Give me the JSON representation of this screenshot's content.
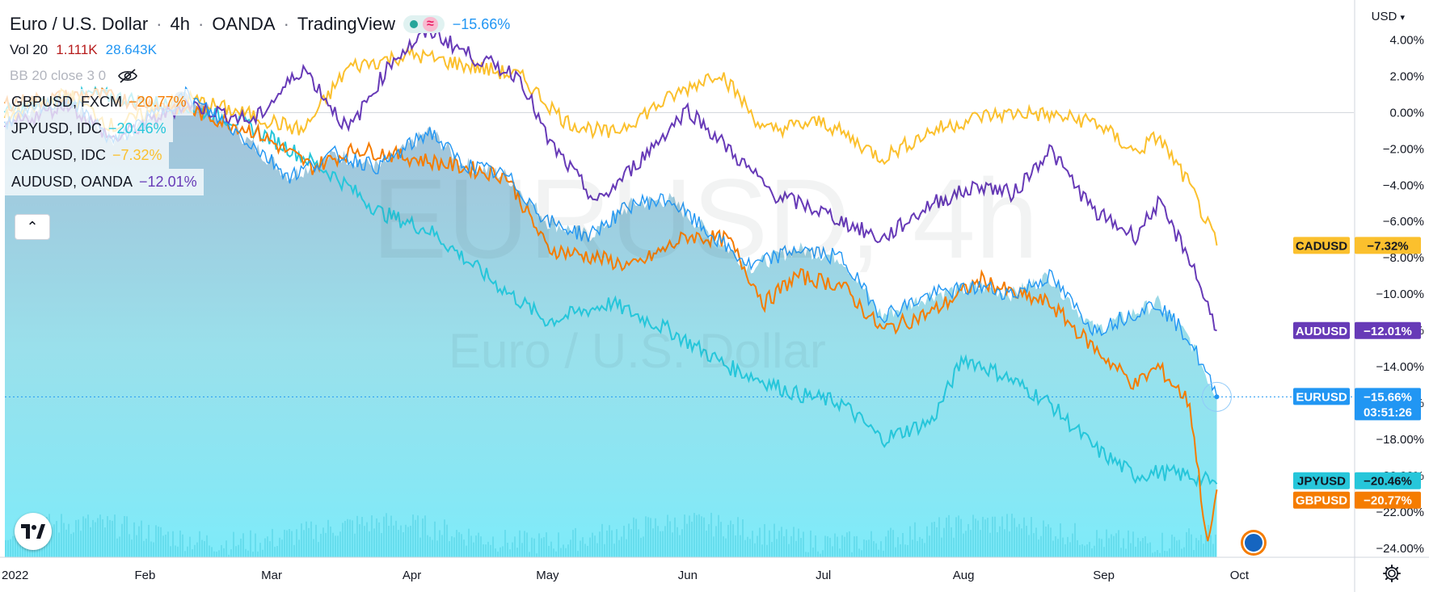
{
  "header": {
    "symbol": "Euro / U.S. Dollar",
    "interval": "4h",
    "exchange": "OANDA",
    "source": "TradingView",
    "change": "−15.66%",
    "sep": "·"
  },
  "indicators": {
    "vol_label": "Vol 20",
    "vol_val1": "1.111K",
    "vol_val2": "28.643K",
    "bb_label": "BB 20 close 3 0"
  },
  "compare": [
    {
      "name": "GBPUSD, FXCM",
      "value": "−20.77%",
      "color": "#f57c00"
    },
    {
      "name": "JPYUSD, IDC",
      "value": "−20.46%",
      "color": "#26c6da"
    },
    {
      "name": "CADUSD, IDC",
      "value": "−7.32%",
      "color": "#fbc02d"
    },
    {
      "name": "AUDUSD, OANDA",
      "value": "−12.01%",
      "color": "#673ab7"
    }
  ],
  "watermark": {
    "big": "EURUSD, 4h",
    "small": "Euro / U.S. Dollar"
  },
  "currency_button": "USD",
  "chart_data": {
    "type": "line",
    "x_ticks": [
      "2022",
      "Feb",
      "Mar",
      "Apr",
      "May",
      "Jun",
      "Jul",
      "Aug",
      "Sep",
      "Oct"
    ],
    "y_ticks": [
      "4.00%",
      "2.00%",
      "0.00%",
      "−2.00%",
      "−4.00%",
      "−6.00%",
      "−8.00%",
      "−10.00%",
      "−12.00%",
      "−14.00%",
      "−16.00%",
      "−18.00%",
      "−20.00%",
      "−22.00%",
      "−24.00%"
    ],
    "ylim": [
      -24.5,
      6.2
    ],
    "x_range": [
      "2022-01-01",
      "2022-10-07"
    ],
    "series": [
      {
        "name": "EURUSD",
        "label": "−15.66%",
        "sub": "03:51:26",
        "color": "#2196f3",
        "points": [
          [
            "2022-01-01",
            -0.5
          ],
          [
            "2022-01-15",
            0.8
          ],
          [
            "2022-01-25",
            -1.6
          ],
          [
            "2022-02-10",
            1.0
          ],
          [
            "2022-02-22",
            -1.2
          ],
          [
            "2022-03-05",
            -3.5
          ],
          [
            "2022-03-15",
            -2.3
          ],
          [
            "2022-03-25",
            -3.0
          ],
          [
            "2022-04-05",
            -1.0
          ],
          [
            "2022-04-12",
            -2.8
          ],
          [
            "2022-04-22",
            -3.5
          ],
          [
            "2022-05-01",
            -6.0
          ],
          [
            "2022-05-10",
            -6.8
          ],
          [
            "2022-05-20",
            -5.0
          ],
          [
            "2022-05-28",
            -4.8
          ],
          [
            "2022-06-05",
            -6.5
          ],
          [
            "2022-06-15",
            -8.5
          ],
          [
            "2022-06-25",
            -7.5
          ],
          [
            "2022-07-05",
            -8.0
          ],
          [
            "2022-07-14",
            -11.2
          ],
          [
            "2022-07-25",
            -10.0
          ],
          [
            "2022-08-05",
            -9.6
          ],
          [
            "2022-08-12",
            -10.0
          ],
          [
            "2022-08-20",
            -9.0
          ],
          [
            "2022-08-30",
            -12.0
          ],
          [
            "2022-09-08",
            -11.0
          ],
          [
            "2022-09-13",
            -10.5
          ],
          [
            "2022-09-20",
            -12.5
          ],
          [
            "2022-09-26",
            -15.66
          ]
        ]
      },
      {
        "name": "CADUSD",
        "label": "−7.32%",
        "color": "#fbc02d",
        "points": [
          [
            "2022-01-01",
            -0.3
          ],
          [
            "2022-01-15",
            1.0
          ],
          [
            "2022-01-25",
            -0.8
          ],
          [
            "2022-02-10",
            0.8
          ],
          [
            "2022-02-25",
            -0.2
          ],
          [
            "2022-03-08",
            -1.0
          ],
          [
            "2022-03-18",
            2.5
          ],
          [
            "2022-04-01",
            3.2
          ],
          [
            "2022-04-15",
            2.5
          ],
          [
            "2022-04-25",
            2.0
          ],
          [
            "2022-05-05",
            -0.5
          ],
          [
            "2022-05-15",
            -1.2
          ],
          [
            "2022-05-28",
            0.8
          ],
          [
            "2022-06-08",
            2.3
          ],
          [
            "2022-06-18",
            -1.0
          ],
          [
            "2022-07-01",
            -0.5
          ],
          [
            "2022-07-14",
            -2.5
          ],
          [
            "2022-07-25",
            -1.0
          ],
          [
            "2022-08-05",
            -0.2
          ],
          [
            "2022-08-15",
            0.0
          ],
          [
            "2022-08-30",
            -0.5
          ],
          [
            "2022-09-08",
            -2.2
          ],
          [
            "2022-09-13",
            -1.3
          ],
          [
            "2022-09-20",
            -4.0
          ],
          [
            "2022-09-26",
            -7.32
          ]
        ]
      },
      {
        "name": "AUDUSD",
        "label": "−12.01%",
        "color": "#673ab7",
        "points": [
          [
            "2022-01-01",
            -0.8
          ],
          [
            "2022-01-15",
            0.5
          ],
          [
            "2022-01-25",
            -1.5
          ],
          [
            "2022-02-10",
            0.5
          ],
          [
            "2022-02-25",
            -0.5
          ],
          [
            "2022-03-08",
            2.5
          ],
          [
            "2022-03-18",
            -1.0
          ],
          [
            "2022-03-28",
            3.0
          ],
          [
            "2022-04-05",
            4.5
          ],
          [
            "2022-04-15",
            3.0
          ],
          [
            "2022-04-25",
            2.0
          ],
          [
            "2022-05-01",
            -1.5
          ],
          [
            "2022-05-12",
            -5.0
          ],
          [
            "2022-05-20",
            -3.0
          ],
          [
            "2022-06-01",
            0.2
          ],
          [
            "2022-06-10",
            -2.0
          ],
          [
            "2022-06-20",
            -4.5
          ],
          [
            "2022-07-01",
            -5.5
          ],
          [
            "2022-07-14",
            -7.0
          ],
          [
            "2022-07-25",
            -5.0
          ],
          [
            "2022-08-05",
            -4.0
          ],
          [
            "2022-08-12",
            -4.5
          ],
          [
            "2022-08-20",
            -2.0
          ],
          [
            "2022-08-30",
            -5.5
          ],
          [
            "2022-09-08",
            -6.8
          ],
          [
            "2022-09-13",
            -5.0
          ],
          [
            "2022-09-20",
            -8.0
          ],
          [
            "2022-09-26",
            -12.01
          ]
        ]
      },
      {
        "name": "JPYUSD",
        "label": "−20.46%",
        "color": "#26c6da",
        "points": [
          [
            "2022-01-01",
            0.0
          ],
          [
            "2022-01-20",
            1.0
          ],
          [
            "2022-02-10",
            0.3
          ],
          [
            "2022-02-22",
            -0.5
          ],
          [
            "2022-03-05",
            -2.0
          ],
          [
            "2022-03-15",
            -3.5
          ],
          [
            "2022-03-25",
            -5.5
          ],
          [
            "2022-04-05",
            -6.5
          ],
          [
            "2022-04-20",
            -9.5
          ],
          [
            "2022-05-01",
            -11.5
          ],
          [
            "2022-05-15",
            -10.5
          ],
          [
            "2022-05-28",
            -12.0
          ],
          [
            "2022-06-10",
            -14.0
          ],
          [
            "2022-06-25",
            -15.5
          ],
          [
            "2022-07-05",
            -16.0
          ],
          [
            "2022-07-14",
            -18.0
          ],
          [
            "2022-07-25",
            -17.0
          ],
          [
            "2022-08-01",
            -13.5
          ],
          [
            "2022-08-10",
            -14.5
          ],
          [
            "2022-08-20",
            -16.0
          ],
          [
            "2022-08-30",
            -18.5
          ],
          [
            "2022-09-08",
            -20.0
          ],
          [
            "2022-09-13",
            -19.8
          ],
          [
            "2022-09-20",
            -20.0
          ],
          [
            "2022-09-26",
            -20.46
          ]
        ]
      },
      {
        "name": "GBPUSD",
        "label": "−20.77%",
        "color": "#f57c00",
        "points": [
          [
            "2022-01-01",
            0.5
          ],
          [
            "2022-01-20",
            1.0
          ],
          [
            "2022-02-10",
            0.2
          ],
          [
            "2022-02-25",
            -1.0
          ],
          [
            "2022-03-10",
            -3.0
          ],
          [
            "2022-03-20",
            -2.0
          ],
          [
            "2022-04-01",
            -2.5
          ],
          [
            "2022-04-12",
            -3.0
          ],
          [
            "2022-04-22",
            -3.5
          ],
          [
            "2022-05-01",
            -7.5
          ],
          [
            "2022-05-12",
            -8.0
          ],
          [
            "2022-05-20",
            -8.5
          ],
          [
            "2022-06-01",
            -6.8
          ],
          [
            "2022-06-10",
            -7.0
          ],
          [
            "2022-06-18",
            -10.5
          ],
          [
            "2022-06-25",
            -9.0
          ],
          [
            "2022-07-05",
            -9.5
          ],
          [
            "2022-07-14",
            -12.0
          ],
          [
            "2022-07-25",
            -11.0
          ],
          [
            "2022-08-05",
            -9.2
          ],
          [
            "2022-08-12",
            -10.0
          ],
          [
            "2022-08-20",
            -10.5
          ],
          [
            "2022-08-30",
            -13.0
          ],
          [
            "2022-09-08",
            -15.0
          ],
          [
            "2022-09-13",
            -14.0
          ],
          [
            "2022-09-20",
            -16.0
          ],
          [
            "2022-09-24",
            -24.0
          ],
          [
            "2022-09-26",
            -20.77
          ]
        ]
      }
    ]
  }
}
